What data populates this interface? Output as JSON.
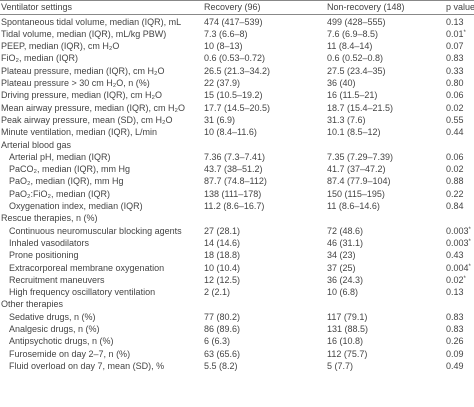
{
  "header": {
    "label": "Ventilator settings",
    "recovery": "Recovery (96)",
    "non_recovery": "Non-recovery (148)",
    "p": "p value"
  },
  "rows": [
    {
      "label": "Spontaneous tidal volume, median (IQR), mL",
      "recovery": "474 (417–539)",
      "non_recovery": "499 (428–555)",
      "p": "0.13"
    },
    {
      "label": "Tidal volume, median (IQR), mL/kg PBW)",
      "recovery": "7.3 (6.6–8)",
      "non_recovery": "7.6 (6.9–8.5)",
      "p": "0.01",
      "sig": "*"
    },
    {
      "label": "PEEP, median (IQR), cm H₂O",
      "recovery": "10 (8–13)",
      "non_recovery": "11 (8.4–14)",
      "p": "0.07"
    },
    {
      "label": "FiO₂, median (IQR)",
      "recovery": "0.6 (0.53–0.72)",
      "non_recovery": "0.6 (0.52–0.8)",
      "p": "0.83"
    },
    {
      "label": "Plateau pressure, median (IQR), cm H₂O",
      "recovery": "26.5 (21.3–34.2)",
      "non_recovery": "27.5 (23.4–35)",
      "p": "0.33"
    },
    {
      "label": "Plateau pressure > 30 cm H₂O, n (%)",
      "recovery": "22 (37.9)",
      "non_recovery": "36 (40)",
      "p": "0.80"
    },
    {
      "label": "Driving pressure, median (IQR), cm H₂O",
      "recovery": "15 (10.5–19.2)",
      "non_recovery": "16 (11.5–21)",
      "p": "0.06"
    },
    {
      "label": "Mean airway pressure, median (IQR), cm H₂O",
      "recovery": "17.7 (14.5–20.5)",
      "non_recovery": "18.7 (15.4–21.5)",
      "p": "0.02"
    },
    {
      "label": "Peak airway pressure, mean (SD), cm H₂O",
      "recovery": "31 (6.9)",
      "non_recovery": "31.3 (7.6)",
      "p": "0.55"
    },
    {
      "label": "Minute ventilation, median (IQR), L/min",
      "recovery": "10 (8.4–11.6)",
      "non_recovery": "10.1 (8.5–12)",
      "p": "0.44"
    },
    {
      "section": "Arterial blood gas"
    },
    {
      "label": "Arterial pH, median (IQR)",
      "recovery": "7.36 (7.3–7.41)",
      "non_recovery": "7.35 (7.29–7.39)",
      "p": "0.06"
    },
    {
      "label": "PaCO₂, median (IQR), mm Hg",
      "recovery": "43.7 (38–51.2)",
      "non_recovery": "41.7 (37–47.2)",
      "p": "0.02"
    },
    {
      "label": "PaO₂, median (IQR), mm Hg",
      "recovery": "87.7 (74.8–112)",
      "non_recovery": "87.4 (77.9–104)",
      "p": "0.88"
    },
    {
      "label": "PaO₂:FiO₂, median (IQR)",
      "recovery": "138 (111–178)",
      "non_recovery": "150 (115–195)",
      "p": "0.22"
    },
    {
      "label": "Oxygenation index, median (IQR)",
      "recovery": "11.2 (8.6–16.7)",
      "non_recovery": "11 (8.6–14.6)",
      "p": "0.84"
    },
    {
      "section": "Rescue therapies, n (%)"
    },
    {
      "label": "Continuous neuromuscular blocking agents",
      "recovery": "27 (28.1)",
      "non_recovery": "72 (48.6)",
      "p": "0.003",
      "sig": "*"
    },
    {
      "label": "Inhaled vasodilators",
      "recovery": "14 (14.6)",
      "non_recovery": "46 (31.1)",
      "p": "0.003",
      "sig": "*"
    },
    {
      "label": "Prone positioning",
      "recovery": "18 (18.8)",
      "non_recovery": "34 (23)",
      "p": "0.43"
    },
    {
      "label": "Extracorporeal membrane oxygenation",
      "recovery": "10 (10.4)",
      "non_recovery": "37 (25)",
      "p": "0.004",
      "sig": "*"
    },
    {
      "label": "Recruitment maneuvers",
      "recovery": "12 (12.5)",
      "non_recovery": "36 (24.3)",
      "p": "0.02",
      "sig": "*"
    },
    {
      "label": "High frequency oscillatory ventilation",
      "recovery": "2 (2.1)",
      "non_recovery": "10 (6.8)",
      "p": "0.13"
    },
    {
      "section": "Other therapies"
    },
    {
      "label": "Sedative drugs, n (%)",
      "recovery": "77 (80.2)",
      "non_recovery": "117 (79.1)",
      "p": "0.83"
    },
    {
      "label": "Analgesic drugs, n (%)",
      "recovery": "86 (89.6)",
      "non_recovery": "131 (88.5)",
      "p": "0.83"
    },
    {
      "label": "Antipsychotic drugs, n (%)",
      "recovery": "6 (6.3)",
      "non_recovery": "16 (10.8)",
      "p": "0.26"
    },
    {
      "label": "Furosemide on day 2–7, n (%)",
      "recovery": "63 (65.6)",
      "non_recovery": "112 (75.7)",
      "p": "0.09"
    },
    {
      "label": "Fluid overload on day 7, mean (SD), %",
      "recovery": "5.5 (8.2)",
      "non_recovery": "5 (7.7)",
      "p": "0.49"
    }
  ]
}
